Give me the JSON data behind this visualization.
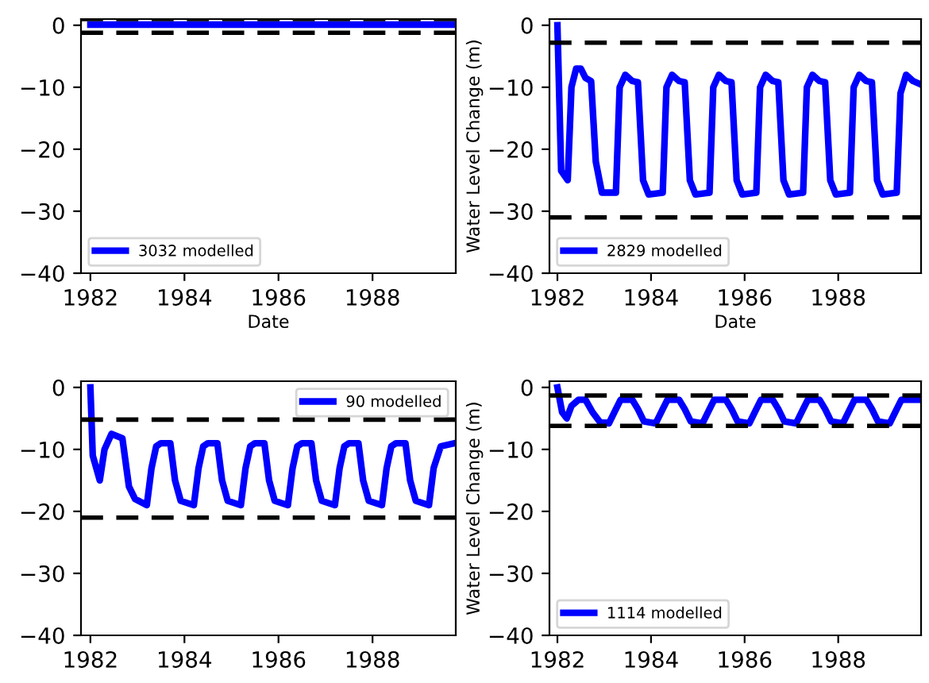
{
  "chart_data": [
    {
      "type": "line",
      "xlabel": "Date",
      "xlim": [
        1981.8,
        1989.77
      ],
      "ylim": [
        -40,
        1
      ],
      "xticks": [
        1982,
        1984,
        1986,
        1988
      ],
      "yticks": [
        {
          "value": 0,
          "label": "0"
        },
        {
          "value": -10,
          "label": "−10"
        },
        {
          "value": -20,
          "label": "−20"
        },
        {
          "value": -30,
          "label": "−30"
        },
        {
          "value": -40,
          "label": "−40"
        }
      ],
      "legend": "bottom left",
      "series": [
        {
          "name": "3032 modelled",
          "color": "#0000ff",
          "x": [
            1982.0,
            1984.0,
            1986.0,
            1988.0,
            1989.77
          ],
          "values": [
            0.1,
            0.1,
            0.1,
            0.1,
            0.1
          ]
        }
      ],
      "ref_lines": [
        {
          "axis": "y",
          "value": 1.0,
          "color": "#000000",
          "line_style": "dashed"
        },
        {
          "axis": "y",
          "value": -1.2,
          "color": "#000000",
          "line_style": "dashed"
        }
      ]
    },
    {
      "type": "line",
      "xlabel": "Date",
      "ylabel": "Water Level Change (m)",
      "xlim": [
        1981.83,
        1989.77
      ],
      "ylim": [
        -40,
        1
      ],
      "xticks": [
        1982,
        1984,
        1986,
        1988
      ],
      "yticks": [
        {
          "value": 0,
          "label": "0"
        },
        {
          "value": -10,
          "label": "−10"
        },
        {
          "value": -20,
          "label": "−20"
        },
        {
          "value": -30,
          "label": "−30"
        },
        {
          "value": -40,
          "label": "−40"
        }
      ],
      "legend": "bottom left",
      "series": [
        {
          "name": "2829 modelled",
          "color": "#0000ff",
          "x": [
            1982.0,
            1982.08,
            1982.22,
            1982.3,
            1982.4,
            1982.5,
            1982.6,
            1982.72,
            1982.82,
            1982.95,
            1983.25,
            1983.33,
            1983.45,
            1983.6,
            1983.72,
            1983.83,
            1983.95,
            1984.25,
            1984.33,
            1984.45,
            1984.6,
            1984.72,
            1984.83,
            1984.95,
            1985.25,
            1985.33,
            1985.45,
            1985.6,
            1985.72,
            1985.83,
            1985.95,
            1986.25,
            1986.33,
            1986.45,
            1986.6,
            1986.72,
            1986.83,
            1986.95,
            1987.25,
            1987.33,
            1987.45,
            1987.6,
            1987.72,
            1987.83,
            1987.95,
            1988.25,
            1988.33,
            1988.45,
            1988.6,
            1988.72,
            1988.83,
            1988.95,
            1989.25,
            1989.33,
            1989.45,
            1989.6,
            1989.75
          ],
          "values": [
            0,
            -23.5,
            -25,
            -10,
            -7,
            -7,
            -8.5,
            -9,
            -22,
            -27,
            -27,
            -10,
            -8,
            -9,
            -9.2,
            -25,
            -27.3,
            -27,
            -10,
            -8,
            -9,
            -9.2,
            -25,
            -27.3,
            -27,
            -10,
            -8,
            -9,
            -9.2,
            -25,
            -27.3,
            -27,
            -10,
            -8,
            -9,
            -9.2,
            -25,
            -27.3,
            -27,
            -10,
            -8,
            -9,
            -9.2,
            -25,
            -27.3,
            -27,
            -10,
            -8,
            -9,
            -9.2,
            -25,
            -27.3,
            -27,
            -11,
            -8,
            -9,
            -9.5
          ]
        }
      ],
      "ref_lines": [
        {
          "axis": "y",
          "value": -2.8,
          "color": "#000000",
          "line_style": "dashed"
        },
        {
          "axis": "y",
          "value": -31,
          "color": "#000000",
          "line_style": "dashed"
        }
      ]
    },
    {
      "type": "line",
      "xlim": [
        1981.8,
        1989.77
      ],
      "ylim": [
        -40,
        1
      ],
      "xticks": [
        1982,
        1984,
        1986,
        1988
      ],
      "yticks": [
        {
          "value": 0,
          "label": "0"
        },
        {
          "value": -10,
          "label": "−10"
        },
        {
          "value": -20,
          "label": "−20"
        },
        {
          "value": -30,
          "label": "−30"
        },
        {
          "value": -40,
          "label": "−40"
        }
      ],
      "legend": "top right",
      "series": [
        {
          "name": "90 modelled",
          "color": "#0000ff",
          "x": [
            1982.0,
            1982.05,
            1982.2,
            1982.3,
            1982.45,
            1982.68,
            1982.82,
            1982.95,
            1983.2,
            1983.3,
            1983.4,
            1983.5,
            1983.7,
            1983.8,
            1983.92,
            1984.2,
            1984.3,
            1984.4,
            1984.5,
            1984.7,
            1984.8,
            1984.92,
            1985.2,
            1985.3,
            1985.4,
            1985.5,
            1985.7,
            1985.8,
            1985.92,
            1986.2,
            1986.3,
            1986.4,
            1986.5,
            1986.7,
            1986.8,
            1986.92,
            1987.2,
            1987.3,
            1987.4,
            1987.5,
            1987.7,
            1987.8,
            1987.92,
            1988.2,
            1988.3,
            1988.4,
            1988.5,
            1988.7,
            1988.8,
            1988.92,
            1989.2,
            1989.3,
            1989.45,
            1989.75
          ],
          "values": [
            0,
            -11,
            -15,
            -10,
            -7.5,
            -8.2,
            -16,
            -18,
            -19,
            -13,
            -9.5,
            -9,
            -9,
            -15,
            -18.3,
            -19,
            -13,
            -9.5,
            -9,
            -9,
            -15,
            -18.3,
            -19,
            -13,
            -9.5,
            -9,
            -9,
            -15,
            -18.3,
            -19,
            -13,
            -9.5,
            -9,
            -9,
            -15,
            -18.3,
            -19,
            -13,
            -9.5,
            -9,
            -9,
            -15,
            -18.3,
            -19,
            -13,
            -9.5,
            -9,
            -9,
            -15,
            -18.3,
            -19,
            -13,
            -9.5,
            -9
          ]
        }
      ],
      "ref_lines": [
        {
          "axis": "y",
          "value": -5.2,
          "color": "#000000",
          "line_style": "dashed"
        },
        {
          "axis": "y",
          "value": -21,
          "color": "#000000",
          "line_style": "dashed"
        }
      ]
    },
    {
      "type": "line",
      "ylabel": "Water Level Change (m)",
      "xlim": [
        1981.83,
        1989.77
      ],
      "ylim": [
        -40,
        1
      ],
      "xticks": [
        1982,
        1984,
        1986,
        1988
      ],
      "yticks": [
        {
          "value": 0,
          "label": "0"
        },
        {
          "value": -10,
          "label": "−10"
        },
        {
          "value": -20,
          "label": "−20"
        },
        {
          "value": -30,
          "label": "−30"
        },
        {
          "value": -40,
          "label": "−40"
        }
      ],
      "legend": "bottom left",
      "series": [
        {
          "name": "1114 modelled",
          "color": "#0000ff",
          "x": [
            1982.0,
            1982.1,
            1982.2,
            1982.3,
            1982.45,
            1982.6,
            1982.75,
            1982.9,
            1983.1,
            1983.25,
            1983.35,
            1983.6,
            1983.72,
            1983.85,
            1984.1,
            1984.25,
            1984.35,
            1984.6,
            1984.72,
            1984.85,
            1985.1,
            1985.25,
            1985.35,
            1985.6,
            1985.72,
            1985.85,
            1986.1,
            1986.25,
            1986.35,
            1986.6,
            1986.72,
            1986.85,
            1987.1,
            1987.25,
            1987.35,
            1987.6,
            1987.72,
            1987.85,
            1988.1,
            1988.25,
            1988.35,
            1988.6,
            1988.72,
            1988.85,
            1989.1,
            1989.25,
            1989.35,
            1989.6,
            1989.75
          ],
          "values": [
            0,
            -4,
            -5,
            -3,
            -2,
            -2,
            -4,
            -5.5,
            -5.8,
            -3.5,
            -2,
            -2,
            -3.5,
            -5.5,
            -5.8,
            -3.5,
            -2,
            -2,
            -3.5,
            -5.5,
            -5.8,
            -3.5,
            -2,
            -2,
            -3.5,
            -5.5,
            -5.8,
            -3.5,
            -2,
            -2,
            -3.5,
            -5.5,
            -5.8,
            -3.5,
            -2,
            -2,
            -3.5,
            -5.5,
            -5.8,
            -3.5,
            -2,
            -2,
            -3.5,
            -5.5,
            -5.8,
            -3.5,
            -2,
            -2,
            -2
          ]
        }
      ],
      "ref_lines": [
        {
          "axis": "y",
          "value": -1.3,
          "color": "#000000",
          "line_style": "dashed"
        },
        {
          "axis": "y",
          "value": -6.2,
          "color": "#000000",
          "line_style": "dashed"
        }
      ]
    }
  ]
}
